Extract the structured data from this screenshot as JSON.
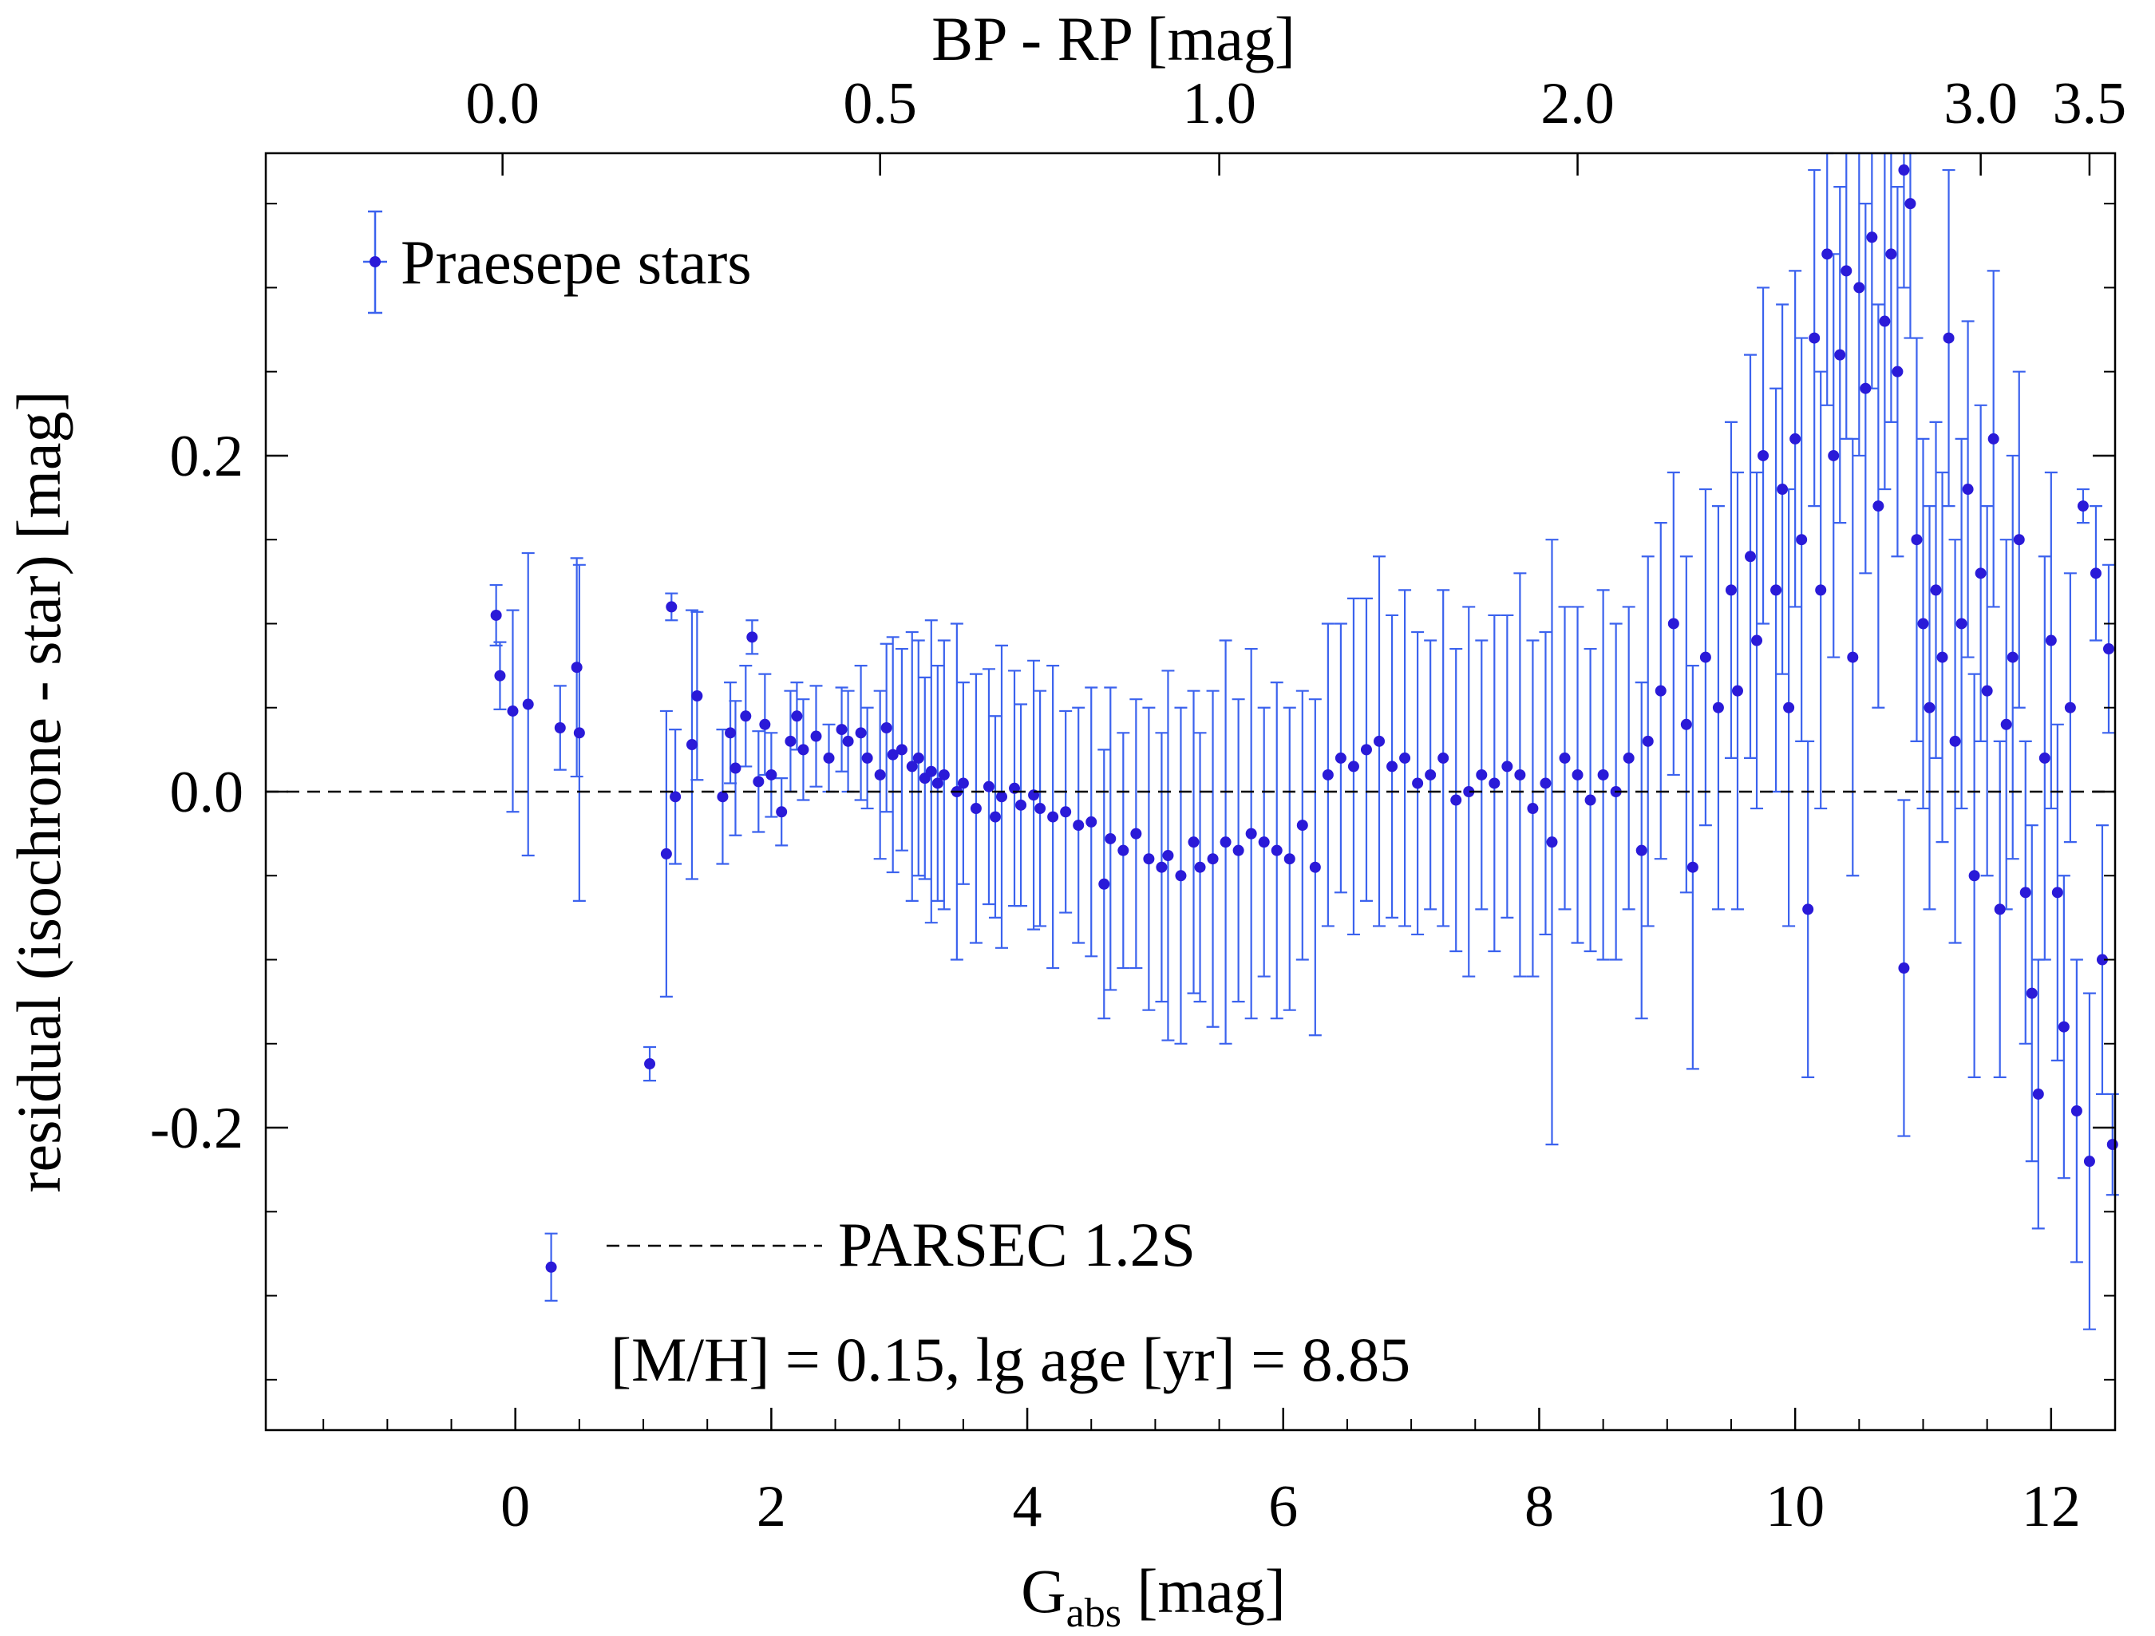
{
  "chart_data": {
    "type": "scatter",
    "xlabel_main": "G",
    "xlabel_sub": "abs",
    "xlabel_unit": " [mag]",
    "ylabel": "residual (isochrone - star) [mag]",
    "top_xlabel": "BP - RP [mag]",
    "xlim": [
      -1.95,
      12.5
    ],
    "ylim": [
      -0.38,
      0.38
    ],
    "x_ticks": [
      0,
      2,
      4,
      6,
      8,
      10,
      12
    ],
    "x_tick_labels": [
      "0",
      "2",
      "4",
      "6",
      "8",
      "10",
      "12"
    ],
    "y_ticks": [
      -0.2,
      0.0,
      0.2
    ],
    "y_tick_labels": [
      "-0.2",
      "0.0",
      "0.2"
    ],
    "top_ticks": [
      {
        "label": "0.0",
        "g": -0.1
      },
      {
        "label": "0.5",
        "g": 2.85
      },
      {
        "label": "1.0",
        "g": 5.5
      },
      {
        "label": "2.0",
        "g": 8.3
      },
      {
        "label": "3.0",
        "g": 11.45
      },
      {
        "label": "3.5",
        "g": 12.3
      }
    ],
    "legend": {
      "label": "Praesepe stars",
      "position": "top-left"
    },
    "reference_line": {
      "y": 0.0,
      "style": "dashed",
      "label": "PARSEC 1.2S"
    },
    "annotation": "[M/H] = 0.15, lg age [yr] = 8.85",
    "grid": false,
    "colors": {
      "point": "#2a1ad8",
      "errorbar": "#3b62ee"
    },
    "series": [
      {
        "name": "Praesepe stars",
        "points": [
          {
            "x": -0.15,
            "y": 0.105,
            "err": 0.018
          },
          {
            "x": -0.12,
            "y": 0.069,
            "err": 0.02
          },
          {
            "x": -0.02,
            "y": 0.048,
            "err": 0.06
          },
          {
            "x": 0.1,
            "y": 0.052,
            "err": 0.09
          },
          {
            "x": 0.28,
            "y": -0.283,
            "err": 0.02
          },
          {
            "x": 0.35,
            "y": 0.038,
            "err": 0.025
          },
          {
            "x": 0.48,
            "y": 0.074,
            "err": 0.065
          },
          {
            "x": 0.5,
            "y": 0.035,
            "err": 0.1
          },
          {
            "x": 1.05,
            "y": -0.162,
            "err": 0.01
          },
          {
            "x": 1.18,
            "y": -0.037,
            "err": 0.085
          },
          {
            "x": 1.22,
            "y": 0.11,
            "err": 0.008
          },
          {
            "x": 1.25,
            "y": -0.003,
            "err": 0.04
          },
          {
            "x": 1.38,
            "y": 0.028,
            "err": 0.08
          },
          {
            "x": 1.42,
            "y": 0.057,
            "err": 0.05
          },
          {
            "x": 1.62,
            "y": -0.003,
            "err": 0.04
          },
          {
            "x": 1.68,
            "y": 0.035,
            "err": 0.03
          },
          {
            "x": 1.72,
            "y": 0.014,
            "err": 0.04
          },
          {
            "x": 1.8,
            "y": 0.045,
            "err": 0.03
          },
          {
            "x": 1.85,
            "y": 0.092,
            "err": 0.01
          },
          {
            "x": 1.9,
            "y": 0.006,
            "err": 0.03
          },
          {
            "x": 1.95,
            "y": 0.04,
            "err": 0.03
          },
          {
            "x": 2.0,
            "y": 0.01,
            "err": 0.025
          },
          {
            "x": 2.08,
            "y": -0.012,
            "err": 0.02
          },
          {
            "x": 2.15,
            "y": 0.03,
            "err": 0.03
          },
          {
            "x": 2.2,
            "y": 0.045,
            "err": 0.02
          },
          {
            "x": 2.25,
            "y": 0.025,
            "err": 0.03
          },
          {
            "x": 2.35,
            "y": 0.033,
            "err": 0.03
          },
          {
            "x": 2.45,
            "y": 0.02,
            "err": 0.02
          },
          {
            "x": 2.55,
            "y": 0.037,
            "err": 0.025
          },
          {
            "x": 2.6,
            "y": 0.03,
            "err": 0.03
          },
          {
            "x": 2.7,
            "y": 0.035,
            "err": 0.04
          },
          {
            "x": 2.75,
            "y": 0.02,
            "err": 0.03
          },
          {
            "x": 2.85,
            "y": 0.01,
            "err": 0.05
          },
          {
            "x": 2.9,
            "y": 0.038,
            "err": 0.05
          },
          {
            "x": 2.95,
            "y": 0.022,
            "err": 0.07
          },
          {
            "x": 3.02,
            "y": 0.025,
            "err": 0.06
          },
          {
            "x": 3.1,
            "y": 0.015,
            "err": 0.08
          },
          {
            "x": 3.15,
            "y": 0.02,
            "err": 0.07
          },
          {
            "x": 3.2,
            "y": 0.008,
            "err": 0.06
          },
          {
            "x": 3.25,
            "y": 0.012,
            "err": 0.09
          },
          {
            "x": 3.3,
            "y": 0.005,
            "err": 0.07
          },
          {
            "x": 3.35,
            "y": 0.01,
            "err": 0.08
          },
          {
            "x": 3.45,
            "y": 0.0,
            "err": 0.1
          },
          {
            "x": 3.5,
            "y": 0.005,
            "err": 0.06
          },
          {
            "x": 3.6,
            "y": -0.01,
            "err": 0.08
          },
          {
            "x": 3.7,
            "y": 0.003,
            "err": 0.07
          },
          {
            "x": 3.75,
            "y": -0.015,
            "err": 0.06
          },
          {
            "x": 3.8,
            "y": -0.003,
            "err": 0.09
          },
          {
            "x": 3.9,
            "y": 0.002,
            "err": 0.07
          },
          {
            "x": 3.95,
            "y": -0.008,
            "err": 0.06
          },
          {
            "x": 4.05,
            "y": -0.002,
            "err": 0.08
          },
          {
            "x": 4.1,
            "y": -0.01,
            "err": 0.07
          },
          {
            "x": 4.2,
            "y": -0.015,
            "err": 0.09
          },
          {
            "x": 4.3,
            "y": -0.012,
            "err": 0.06
          },
          {
            "x": 4.4,
            "y": -0.02,
            "err": 0.07
          },
          {
            "x": 4.5,
            "y": -0.018,
            "err": 0.08
          },
          {
            "x": 4.6,
            "y": -0.055,
            "err": 0.08
          },
          {
            "x": 4.65,
            "y": -0.028,
            "err": 0.09
          },
          {
            "x": 4.75,
            "y": -0.035,
            "err": 0.07
          },
          {
            "x": 4.85,
            "y": -0.025,
            "err": 0.08
          },
          {
            "x": 4.95,
            "y": -0.04,
            "err": 0.09
          },
          {
            "x": 5.05,
            "y": -0.045,
            "err": 0.08
          },
          {
            "x": 5.1,
            "y": -0.038,
            "err": 0.11
          },
          {
            "x": 5.2,
            "y": -0.05,
            "err": 0.1
          },
          {
            "x": 5.3,
            "y": -0.03,
            "err": 0.09
          },
          {
            "x": 5.35,
            "y": -0.045,
            "err": 0.08
          },
          {
            "x": 5.45,
            "y": -0.04,
            "err": 0.1
          },
          {
            "x": 5.55,
            "y": -0.03,
            "err": 0.12
          },
          {
            "x": 5.65,
            "y": -0.035,
            "err": 0.09
          },
          {
            "x": 5.75,
            "y": -0.025,
            "err": 0.11
          },
          {
            "x": 5.85,
            "y": -0.03,
            "err": 0.08
          },
          {
            "x": 5.95,
            "y": -0.035,
            "err": 0.1
          },
          {
            "x": 6.05,
            "y": -0.04,
            "err": 0.09
          },
          {
            "x": 6.15,
            "y": -0.02,
            "err": 0.08
          },
          {
            "x": 6.25,
            "y": -0.045,
            "err": 0.1
          },
          {
            "x": 6.35,
            "y": 0.01,
            "err": 0.09
          },
          {
            "x": 6.45,
            "y": 0.02,
            "err": 0.08
          },
          {
            "x": 6.55,
            "y": 0.015,
            "err": 0.1
          },
          {
            "x": 6.65,
            "y": 0.025,
            "err": 0.09
          },
          {
            "x": 6.75,
            "y": 0.03,
            "err": 0.11
          },
          {
            "x": 6.85,
            "y": 0.015,
            "err": 0.09
          },
          {
            "x": 6.95,
            "y": 0.02,
            "err": 0.1
          },
          {
            "x": 7.05,
            "y": 0.005,
            "err": 0.09
          },
          {
            "x": 7.15,
            "y": 0.01,
            "err": 0.08
          },
          {
            "x": 7.25,
            "y": 0.02,
            "err": 0.1
          },
          {
            "x": 7.35,
            "y": -0.005,
            "err": 0.09
          },
          {
            "x": 7.45,
            "y": 0.0,
            "err": 0.11
          },
          {
            "x": 7.55,
            "y": 0.01,
            "err": 0.08
          },
          {
            "x": 7.65,
            "y": 0.005,
            "err": 0.1
          },
          {
            "x": 7.75,
            "y": 0.015,
            "err": 0.09
          },
          {
            "x": 7.85,
            "y": 0.01,
            "err": 0.12
          },
          {
            "x": 7.95,
            "y": -0.01,
            "err": 0.1
          },
          {
            "x": 8.05,
            "y": 0.005,
            "err": 0.09
          },
          {
            "x": 8.1,
            "y": -0.03,
            "err": 0.18
          },
          {
            "x": 8.2,
            "y": 0.02,
            "err": 0.09
          },
          {
            "x": 8.3,
            "y": 0.01,
            "err": 0.1
          },
          {
            "x": 8.4,
            "y": -0.005,
            "err": 0.09
          },
          {
            "x": 8.5,
            "y": 0.01,
            "err": 0.11
          },
          {
            "x": 8.6,
            "y": 0.0,
            "err": 0.1
          },
          {
            "x": 8.7,
            "y": 0.02,
            "err": 0.09
          },
          {
            "x": 8.8,
            "y": -0.035,
            "err": 0.1
          },
          {
            "x": 8.85,
            "y": 0.03,
            "err": 0.11
          },
          {
            "x": 8.95,
            "y": 0.06,
            "err": 0.1
          },
          {
            "x": 9.05,
            "y": 0.1,
            "err": 0.09
          },
          {
            "x": 9.15,
            "y": 0.04,
            "err": 0.1
          },
          {
            "x": 9.2,
            "y": -0.045,
            "err": 0.12
          },
          {
            "x": 9.3,
            "y": 0.08,
            "err": 0.1
          },
          {
            "x": 9.4,
            "y": 0.05,
            "err": 0.12
          },
          {
            "x": 9.5,
            "y": 0.12,
            "err": 0.1
          },
          {
            "x": 9.55,
            "y": 0.06,
            "err": 0.13
          },
          {
            "x": 9.65,
            "y": 0.14,
            "err": 0.12
          },
          {
            "x": 9.7,
            "y": 0.09,
            "err": 0.1
          },
          {
            "x": 9.75,
            "y": 0.2,
            "err": 0.1
          },
          {
            "x": 9.85,
            "y": 0.12,
            "err": 0.12
          },
          {
            "x": 9.9,
            "y": 0.18,
            "err": 0.11
          },
          {
            "x": 9.95,
            "y": 0.05,
            "err": 0.13
          },
          {
            "x": 10.0,
            "y": 0.21,
            "err": 0.1
          },
          {
            "x": 10.05,
            "y": 0.15,
            "err": 0.12
          },
          {
            "x": 10.1,
            "y": -0.07,
            "err": 0.1
          },
          {
            "x": 10.15,
            "y": 0.27,
            "err": 0.1
          },
          {
            "x": 10.2,
            "y": 0.12,
            "err": 0.13
          },
          {
            "x": 10.25,
            "y": 0.32,
            "err": 0.09
          },
          {
            "x": 10.3,
            "y": 0.2,
            "err": 0.12
          },
          {
            "x": 10.35,
            "y": 0.26,
            "err": 0.1
          },
          {
            "x": 10.4,
            "y": 0.31,
            "err": 0.1
          },
          {
            "x": 10.45,
            "y": 0.08,
            "err": 0.13
          },
          {
            "x": 10.5,
            "y": 0.3,
            "err": 0.1
          },
          {
            "x": 10.55,
            "y": 0.24,
            "err": 0.11
          },
          {
            "x": 10.6,
            "y": 0.33,
            "err": 0.09
          },
          {
            "x": 10.65,
            "y": 0.17,
            "err": 0.12
          },
          {
            "x": 10.7,
            "y": 0.28,
            "err": 0.1
          },
          {
            "x": 10.75,
            "y": 0.32,
            "err": 0.1
          },
          {
            "x": 10.8,
            "y": 0.25,
            "err": 0.11
          },
          {
            "x": 10.85,
            "y": -0.105,
            "err": 0.1
          },
          {
            "x": 10.85,
            "y": 0.37,
            "err": 0.07
          },
          {
            "x": 10.9,
            "y": 0.35,
            "err": 0.08
          },
          {
            "x": 10.95,
            "y": 0.15,
            "err": 0.12
          },
          {
            "x": 11.0,
            "y": 0.1,
            "err": 0.11
          },
          {
            "x": 11.05,
            "y": 0.05,
            "err": 0.12
          },
          {
            "x": 11.1,
            "y": 0.12,
            "err": 0.1
          },
          {
            "x": 11.15,
            "y": 0.08,
            "err": 0.11
          },
          {
            "x": 11.2,
            "y": 0.27,
            "err": 0.1
          },
          {
            "x": 11.25,
            "y": 0.03,
            "err": 0.12
          },
          {
            "x": 11.3,
            "y": 0.1,
            "err": 0.11
          },
          {
            "x": 11.35,
            "y": 0.18,
            "err": 0.1
          },
          {
            "x": 11.4,
            "y": -0.05,
            "err": 0.12
          },
          {
            "x": 11.45,
            "y": 0.13,
            "err": 0.1
          },
          {
            "x": 11.5,
            "y": 0.06,
            "err": 0.11
          },
          {
            "x": 11.55,
            "y": 0.21,
            "err": 0.1
          },
          {
            "x": 11.6,
            "y": -0.07,
            "err": 0.1
          },
          {
            "x": 11.65,
            "y": 0.04,
            "err": 0.11
          },
          {
            "x": 11.7,
            "y": 0.08,
            "err": 0.12
          },
          {
            "x": 11.75,
            "y": 0.15,
            "err": 0.1
          },
          {
            "x": 11.8,
            "y": -0.06,
            "err": 0.09
          },
          {
            "x": 11.85,
            "y": -0.12,
            "err": 0.1
          },
          {
            "x": 11.9,
            "y": -0.18,
            "err": 0.08
          },
          {
            "x": 11.95,
            "y": 0.02,
            "err": 0.12
          },
          {
            "x": 12.0,
            "y": 0.09,
            "err": 0.1
          },
          {
            "x": 12.05,
            "y": -0.06,
            "err": 0.1
          },
          {
            "x": 12.1,
            "y": -0.14,
            "err": 0.09
          },
          {
            "x": 12.15,
            "y": 0.05,
            "err": 0.08
          },
          {
            "x": 12.2,
            "y": -0.19,
            "err": 0.09
          },
          {
            "x": 12.25,
            "y": 0.17,
            "err": 0.01
          },
          {
            "x": 12.3,
            "y": -0.22,
            "err": 0.1
          },
          {
            "x": 12.35,
            "y": 0.13,
            "err": 0.04
          },
          {
            "x": 12.4,
            "y": -0.1,
            "err": 0.08
          },
          {
            "x": 12.45,
            "y": 0.085,
            "err": 0.05
          },
          {
            "x": 12.48,
            "y": -0.21,
            "err": 0.03
          }
        ]
      }
    ]
  }
}
